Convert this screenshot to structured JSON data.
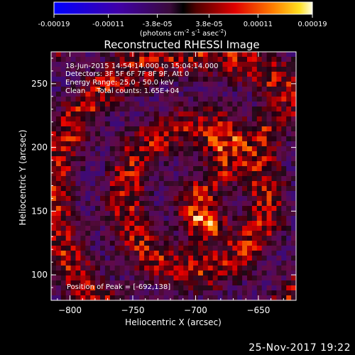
{
  "colorbar": {
    "tick_labels": [
      "-0.00019",
      "-0.00011",
      "-3.8e-05",
      "3.8e-05",
      "0.00011",
      "0.00019"
    ],
    "unit_label": "(photons cm",
    "unit_exp1": "-2",
    "unit_mid": " s",
    "unit_exp2": "-1",
    "unit_mid2": " asec",
    "unit_exp3": "-2",
    "unit_close": ")",
    "range": [
      -0.00019,
      0.00019
    ]
  },
  "title": "Reconstructed RHESSI Image",
  "annotations": {
    "time": "18-Jun-2015 14:54:14.000 to 15:04:14.000",
    "detectors": "Detectors: 3F 5F 6F 7F 8F 9F, Att 0",
    "energy": "Energy Range: 25.0 - 50.0 keV",
    "clean": "Clean     Total counts: 1.65E+04",
    "peak": "Position of Peak = [-692,138]"
  },
  "footer": {
    "date": "25-Nov-2017 19:22"
  },
  "chart_data": {
    "type": "heatmap",
    "title": "Reconstructed RHESSI Image",
    "xlabel": "Heliocentric X (arcsec)",
    "ylabel": "Heliocentric Y (arcsec)",
    "xlim": [
      -815,
      -620
    ],
    "ylim": [
      80,
      275
    ],
    "x_ticks": [
      -800,
      -750,
      -700,
      -650
    ],
    "y_ticks": [
      100,
      150,
      200,
      250
    ],
    "x_tick_labels": [
      "−800",
      "−750",
      "−700",
      "−650"
    ],
    "y_tick_labels": [
      "100",
      "150",
      "200",
      "250"
    ],
    "peak": {
      "x": -692,
      "y": 138
    },
    "colormap": "RHESSI hot (dark purple - red - orange - yellow - white)",
    "colors": {
      "background": "#000000",
      "text": "#ffffff"
    }
  }
}
